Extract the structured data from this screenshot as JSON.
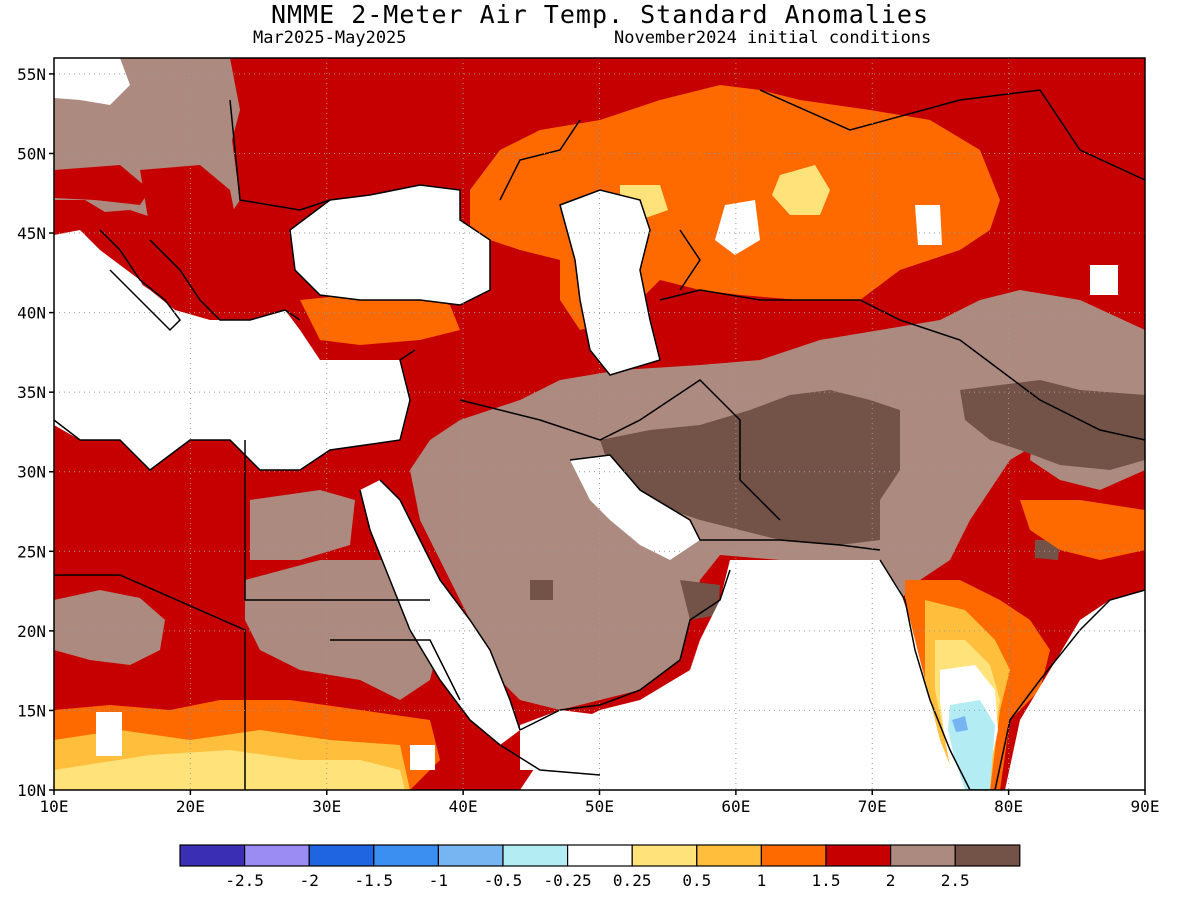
{
  "title": "NMME 2-Meter Air Temp. Standard Anomalies",
  "period": "Mar2025-May2025",
  "init": "November2024 initial conditions",
  "map": {
    "lon_range": [
      10,
      90
    ],
    "lat_range": [
      10,
      56
    ],
    "lon_ticks": [
      "10E",
      "20E",
      "30E",
      "40E",
      "50E",
      "60E",
      "70E",
      "80E",
      "90E"
    ],
    "lat_ticks": [
      "10N",
      "15N",
      "20N",
      "25N",
      "30N",
      "35N",
      "40N",
      "45N",
      "50N",
      "55N"
    ],
    "grid": "dotted"
  },
  "colors": {
    "c_below_m25": "#3a2fb4",
    "c_m25_m2": "#9b8cf3",
    "c_m2_m15": "#1f64e0",
    "c_m15_m1": "#3a8ff0",
    "c_m1_m05": "#76b4f2",
    "c_m05_m025": "#b4ecf4",
    "c_neutral": "#ffffff",
    "c_025_05": "#ffe27a",
    "c_05_1": "#ffbf3c",
    "c_1_15": "#ff6a00",
    "c_15_2": "#c60000",
    "c_2_25": "#ad8a7f",
    "c_above_25": "#735248"
  },
  "legend": {
    "labels": [
      "-2.5",
      "-2",
      "-1.5",
      "-1",
      "-0.5",
      "-0.25",
      "0.25",
      "0.5",
      "1",
      "1.5",
      "2",
      "2.5"
    ]
  }
}
